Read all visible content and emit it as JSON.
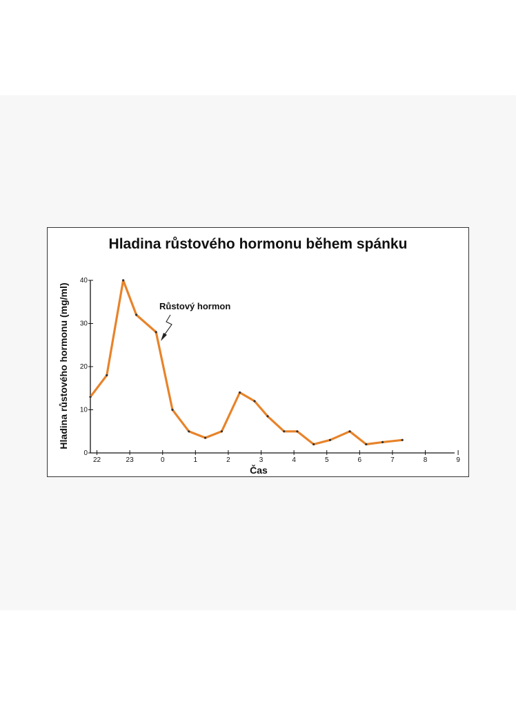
{
  "chart_data": {
    "type": "line",
    "title": "Hladina růstového hormonu během spánku",
    "xlabel": "Čas",
    "ylabel": "Hladina růstového hormonu (mg/ml)",
    "x_ticks": [
      "22",
      "23",
      "0",
      "1",
      "2",
      "3",
      "4",
      "5",
      "6",
      "7",
      "8",
      "9"
    ],
    "y_ticks": [
      0,
      10,
      20,
      30,
      40
    ],
    "ylim": [
      0,
      40
    ],
    "grid": false,
    "annotation": "Růstový hormon",
    "line_color": "#e8832a",
    "series": [
      {
        "x_hours_after_22": [
          0.0,
          0.5,
          1.0,
          1.4,
          2.0,
          2.5,
          3.0,
          3.5,
          4.0,
          4.55,
          5.0,
          5.4,
          5.9,
          6.3,
          6.8,
          7.3,
          7.9,
          8.4,
          8.9,
          9.5
        ],
        "values": [
          13,
          18,
          40,
          32,
          28,
          10,
          5,
          3.5,
          5,
          14,
          12,
          8.5,
          5,
          5,
          2,
          3,
          5,
          2,
          2.5,
          3
        ]
      }
    ]
  }
}
